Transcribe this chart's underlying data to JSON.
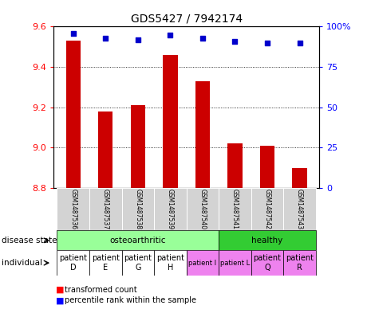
{
  "title": "GDS5427 / 7942174",
  "samples": [
    "GSM1487536",
    "GSM1487537",
    "GSM1487538",
    "GSM1487539",
    "GSM1487540",
    "GSM1487541",
    "GSM1487542",
    "GSM1487543"
  ],
  "transformed_count": [
    9.53,
    9.18,
    9.21,
    9.46,
    9.33,
    9.02,
    9.01,
    8.9
  ],
  "percentile_rank": [
    96,
    93,
    92,
    95,
    93,
    91,
    90,
    90
  ],
  "ylim": [
    8.8,
    9.6
  ],
  "yticks": [
    8.8,
    9.0,
    9.2,
    9.4,
    9.6
  ],
  "y2lim": [
    0,
    100
  ],
  "y2ticks": [
    0,
    25,
    50,
    75,
    100
  ],
  "y2ticklabels": [
    "0",
    "25",
    "50",
    "75",
    "100%"
  ],
  "bar_color": "#cc0000",
  "dot_color": "#0000cc",
  "bar_width": 0.45,
  "dot_size": 18,
  "grid_color": "#000000",
  "sample_bg_color": "#d3d3d3",
  "oa_color": "#99ff99",
  "healthy_color": "#33cc33",
  "indiv_bg_white": "#ffffff",
  "indiv_bg_pink": "#ee82ee",
  "title_fontsize": 10,
  "tick_fontsize": 8,
  "label_fontsize": 7.5,
  "legend_fontsize": 7,
  "sample_label_fontsize": 5.5,
  "indiv_fontsize_large": 7,
  "indiv_fontsize_small": 6
}
